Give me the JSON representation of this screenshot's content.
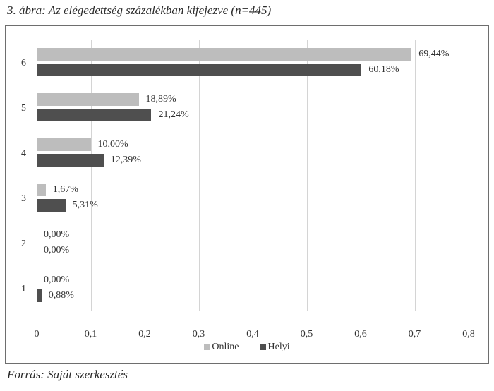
{
  "caption": "3. ábra: Az elégedettség százalékban kifejezve (n=445)",
  "source": "Forrás: Saját szerkesztés",
  "chart_data": {
    "type": "bar",
    "orientation": "horizontal",
    "title": "3. ábra: Az elégedettség százalékban kifejezve (n=445)",
    "xlabel": "",
    "ylabel": "",
    "xlim": [
      0,
      0.8
    ],
    "grid": true,
    "legend_position": "bottom",
    "categories": [
      "6",
      "5",
      "4",
      "3",
      "2",
      "1"
    ],
    "x_ticks": [
      "0",
      "0,1",
      "0,2",
      "0,3",
      "0,4",
      "0,5",
      "0,6",
      "0,7",
      "0,8"
    ],
    "series": [
      {
        "name": "Online",
        "color": "#bdbdbd",
        "values": [
          0.6944,
          0.1889,
          0.1,
          0.0167,
          0.0,
          0.0
        ],
        "labels": [
          "69,44%",
          "18,89%",
          "10,00%",
          "1,67%",
          "0,00%",
          "0,00%"
        ]
      },
      {
        "name": "Helyi",
        "color": "#4f4f4f",
        "values": [
          0.6018,
          0.2124,
          0.1239,
          0.0531,
          0.0,
          0.0088
        ],
        "labels": [
          "60,18%",
          "21,24%",
          "12,39%",
          "5,31%",
          "0,00%",
          "0,88%"
        ]
      }
    ]
  }
}
